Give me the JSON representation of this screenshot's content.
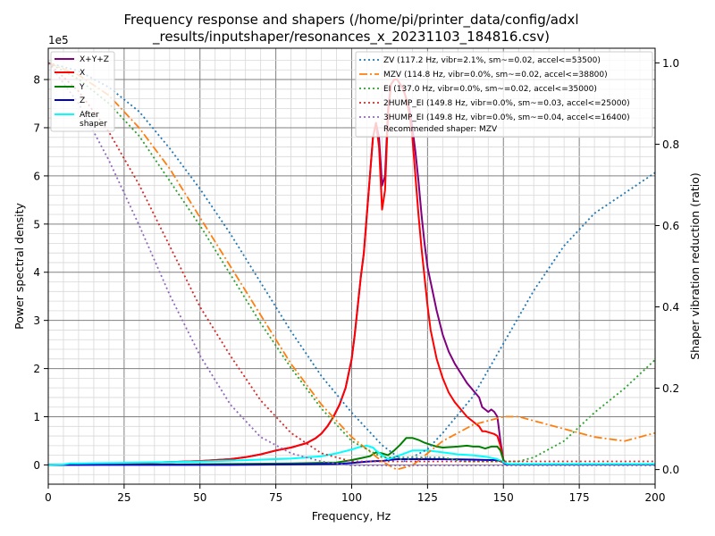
{
  "chart_data": {
    "type": "line",
    "title_line1": "Frequency response and shapers (/home/pi/printer_data/config/adxl",
    "title_line2": "_results/inputshaper/resonances_x_20231103_184816.csv)",
    "xlabel": "Frequency, Hz",
    "ylabel": "Power spectral density",
    "y2label": "Shaper vibration reduction (ratio)",
    "y_scale_label": "1e5",
    "xlim": [
      0,
      200
    ],
    "ylim": [
      -0.4,
      8.65
    ],
    "y2lim": [
      -0.036,
      1.036
    ],
    "x_ticks": [
      0,
      25,
      50,
      75,
      100,
      125,
      150,
      175,
      200
    ],
    "y_ticks": [
      0,
      1,
      2,
      3,
      4,
      5,
      6,
      7,
      8
    ],
    "y2_ticks": [
      0.0,
      0.2,
      0.4,
      0.6,
      0.8,
      1.0
    ],
    "y_tick_labels": [
      "0",
      "1",
      "2",
      "3",
      "4",
      "5",
      "6",
      "7",
      "8"
    ],
    "y2_tick_labels": [
      "0.0",
      "0.2",
      "0.4",
      "0.6",
      "0.8",
      "1.0"
    ],
    "grid": true,
    "psd_legend_position": "top-left",
    "shaper_legend_position": "top-right",
    "recommended_text": "Recommended shaper: MZV",
    "psd_series": [
      {
        "name": "X+Y+Z",
        "color": "#800080",
        "x": [
          0,
          5,
          10,
          20,
          30,
          40,
          50,
          60,
          65,
          70,
          75,
          80,
          85,
          88,
          90,
          92,
          94,
          96,
          98,
          100,
          101,
          102,
          103,
          104,
          105,
          106,
          107,
          108,
          109,
          110,
          111,
          112,
          113,
          114,
          115,
          116,
          117,
          118,
          119,
          120,
          121,
          122,
          123,
          124,
          125,
          126,
          128,
          130,
          132,
          134,
          136,
          138,
          140,
          142,
          143,
          144,
          145,
          146,
          147,
          148,
          149,
          150,
          151,
          152,
          155,
          160,
          170,
          180,
          190,
          200
        ],
        "y": [
          0,
          0,
          0.01,
          0.02,
          0.04,
          0.06,
          0.08,
          0.12,
          0.16,
          0.22,
          0.3,
          0.36,
          0.45,
          0.55,
          0.65,
          0.8,
          1.0,
          1.25,
          1.6,
          2.2,
          2.7,
          3.3,
          3.9,
          4.4,
          5.2,
          6.0,
          6.8,
          7.1,
          6.8,
          5.8,
          6.0,
          7.4,
          7.9,
          8.0,
          8.0,
          7.9,
          7.8,
          7.6,
          7.4,
          7.0,
          6.5,
          5.9,
          5.2,
          4.6,
          4.1,
          3.8,
          3.2,
          2.7,
          2.35,
          2.1,
          1.9,
          1.7,
          1.55,
          1.4,
          1.2,
          1.15,
          1.1,
          1.15,
          1.1,
          1.0,
          0.5,
          0.1,
          0.02,
          0.01,
          0.01,
          0.01,
          0.01,
          0.01,
          0.01,
          0.01
        ]
      },
      {
        "name": "X",
        "color": "#ff0000",
        "x": [
          0,
          5,
          10,
          20,
          30,
          40,
          50,
          60,
          65,
          70,
          75,
          80,
          85,
          88,
          90,
          92,
          94,
          96,
          98,
          100,
          101,
          102,
          103,
          104,
          105,
          106,
          107,
          108,
          109,
          110,
          111,
          112,
          113,
          114,
          115,
          116,
          117,
          118,
          119,
          120,
          121,
          122,
          123,
          124,
          125,
          126,
          128,
          130,
          132,
          134,
          136,
          138,
          140,
          142,
          143,
          144,
          145,
          146,
          147,
          148,
          149,
          150,
          151,
          152,
          155,
          160,
          170,
          180,
          190,
          200
        ],
        "y": [
          0,
          0,
          0.01,
          0.02,
          0.04,
          0.06,
          0.08,
          0.12,
          0.16,
          0.22,
          0.3,
          0.36,
          0.45,
          0.55,
          0.65,
          0.8,
          1.0,
          1.25,
          1.6,
          2.2,
          2.7,
          3.3,
          3.9,
          4.4,
          5.2,
          6.0,
          6.8,
          7.1,
          6.6,
          5.3,
          5.7,
          7.3,
          7.9,
          8.0,
          8.0,
          7.9,
          7.8,
          7.6,
          7.3,
          6.8,
          6.0,
          5.2,
          4.5,
          3.9,
          3.3,
          2.8,
          2.2,
          1.8,
          1.5,
          1.3,
          1.15,
          1.0,
          0.9,
          0.8,
          0.7,
          0.7,
          0.68,
          0.66,
          0.64,
          0.6,
          0.4,
          0.1,
          0.02,
          0.01,
          0.01,
          0.01,
          0.01,
          0.01,
          0.01,
          0.01
        ]
      },
      {
        "name": "Y",
        "color": "#008000",
        "x": [
          0,
          10,
          20,
          40,
          60,
          80,
          95,
          100,
          103,
          106,
          108,
          110,
          112,
          114,
          116,
          118,
          120,
          122,
          124,
          126,
          128,
          130,
          135,
          138,
          140,
          142,
          144,
          146,
          148,
          149,
          150,
          151,
          152,
          155,
          160,
          180,
          200
        ],
        "y": [
          0,
          0,
          0.01,
          0.01,
          0.02,
          0.03,
          0.05,
          0.1,
          0.14,
          0.18,
          0.26,
          0.24,
          0.2,
          0.3,
          0.42,
          0.56,
          0.56,
          0.52,
          0.46,
          0.42,
          0.38,
          0.36,
          0.38,
          0.4,
          0.38,
          0.38,
          0.34,
          0.38,
          0.38,
          0.3,
          0.1,
          0.02,
          0.01,
          0.01,
          0.01,
          0.01,
          0.01
        ]
      },
      {
        "name": "Z",
        "color": "#0000cd",
        "x": [
          0,
          20,
          40,
          60,
          80,
          95,
          100,
          105,
          108,
          110,
          112,
          115,
          118,
          120,
          125,
          130,
          140,
          145,
          148,
          150,
          151,
          152,
          160,
          180,
          200
        ],
        "y": [
          0,
          0,
          0,
          0,
          0.01,
          0.02,
          0.04,
          0.07,
          0.08,
          0.08,
          0.1,
          0.12,
          0.12,
          0.12,
          0.12,
          0.12,
          0.11,
          0.1,
          0.1,
          0.05,
          0.01,
          0.01,
          0.01,
          0.01,
          0.01
        ]
      },
      {
        "name": "After\nshaper",
        "color": "#00ffff",
        "x": [
          0,
          5,
          7,
          10,
          20,
          30,
          40,
          50,
          60,
          70,
          80,
          90,
          95,
          100,
          103,
          105,
          107,
          108,
          110,
          112,
          115,
          120,
          125,
          130,
          135,
          140,
          145,
          148,
          150,
          151,
          152,
          155,
          160,
          180,
          200
        ],
        "y": [
          0,
          0.01,
          0.03,
          0.03,
          0.04,
          0.05,
          0.06,
          0.07,
          0.09,
          0.11,
          0.13,
          0.18,
          0.24,
          0.32,
          0.38,
          0.4,
          0.36,
          0.3,
          0.2,
          0.12,
          0.18,
          0.3,
          0.3,
          0.26,
          0.22,
          0.2,
          0.16,
          0.12,
          0.06,
          0.03,
          0.02,
          0.02,
          0.02,
          0.02,
          0.02
        ]
      }
    ],
    "shaper_series": [
      {
        "name": "ZV (117.2 Hz, vibr=2.1%, sm~=0.02, accel<=53500)",
        "color": "#1f77b4",
        "dash": "dotted",
        "x": [
          0,
          10,
          20,
          30,
          40,
          50,
          60,
          70,
          80,
          90,
          100,
          110,
          117.2,
          125,
          130,
          140,
          150,
          160,
          170,
          180,
          190,
          200
        ],
        "y": [
          1.0,
          0.98,
          0.94,
          0.88,
          0.79,
          0.69,
          0.58,
          0.46,
          0.34,
          0.23,
          0.14,
          0.06,
          0.02,
          0.05,
          0.09,
          0.18,
          0.31,
          0.44,
          0.55,
          0.63,
          0.68,
          0.73
        ]
      },
      {
        "name": "MZV (114.8 Hz, vibr=0.0%, sm~=0.02, accel<=38800)",
        "color": "#ff7f0e",
        "dash": "dashdot",
        "x": [
          0,
          10,
          20,
          30,
          40,
          50,
          60,
          70,
          80,
          90,
          100,
          110,
          114.8,
          120,
          125,
          130,
          140,
          150,
          155,
          160,
          170,
          180,
          190,
          200
        ],
        "y": [
          1.0,
          0.97,
          0.92,
          0.84,
          0.74,
          0.62,
          0.5,
          0.38,
          0.26,
          0.16,
          0.08,
          0.02,
          0.0,
          0.01,
          0.04,
          0.07,
          0.11,
          0.13,
          0.13,
          0.12,
          0.1,
          0.08,
          0.07,
          0.09
        ]
      },
      {
        "name": "EI (137.0 Hz, vibr=0.0%, sm~=0.02, accel<=35000)",
        "color": "#2ca02c",
        "dash": "dotted",
        "x": [
          0,
          10,
          20,
          30,
          40,
          50,
          60,
          70,
          80,
          90,
          100,
          110,
          120,
          130,
          137,
          145,
          150,
          155,
          160,
          170,
          180,
          190,
          200
        ],
        "y": [
          1.0,
          0.96,
          0.9,
          0.82,
          0.71,
          0.6,
          0.48,
          0.36,
          0.25,
          0.15,
          0.07,
          0.03,
          0.03,
          0.03,
          0.02,
          0.02,
          0.02,
          0.02,
          0.03,
          0.07,
          0.14,
          0.2,
          0.27
        ]
      },
      {
        "name": "2HUMP_EI (149.8 Hz, vibr=0.0%, sm~=0.03, accel<=25000)",
        "color": "#d62728",
        "dash": "dotted",
        "x": [
          0,
          10,
          20,
          30,
          40,
          50,
          60,
          70,
          80,
          90,
          100,
          110,
          120,
          130,
          140,
          150,
          160,
          170,
          180,
          190,
          200
        ],
        "y": [
          1.0,
          0.93,
          0.83,
          0.7,
          0.55,
          0.4,
          0.28,
          0.17,
          0.09,
          0.04,
          0.02,
          0.02,
          0.02,
          0.02,
          0.02,
          0.02,
          0.02,
          0.02,
          0.02,
          0.02,
          0.02
        ]
      },
      {
        "name": "3HUMP_EI (149.8 Hz, vibr=0.0%, sm~=0.04, accel<=16400)",
        "color": "#9467bd",
        "dash": "dotted",
        "x": [
          0,
          10,
          20,
          30,
          40,
          50,
          60,
          70,
          80,
          90,
          100,
          110,
          120,
          130,
          140,
          150,
          160,
          170,
          180,
          190,
          200
        ],
        "y": [
          1.0,
          0.9,
          0.76,
          0.6,
          0.43,
          0.28,
          0.16,
          0.08,
          0.04,
          0.02,
          0.01,
          0.01,
          0.01,
          0.01,
          0.01,
          0.01,
          0.01,
          0.01,
          0.01,
          0.01,
          0.01
        ]
      }
    ]
  }
}
